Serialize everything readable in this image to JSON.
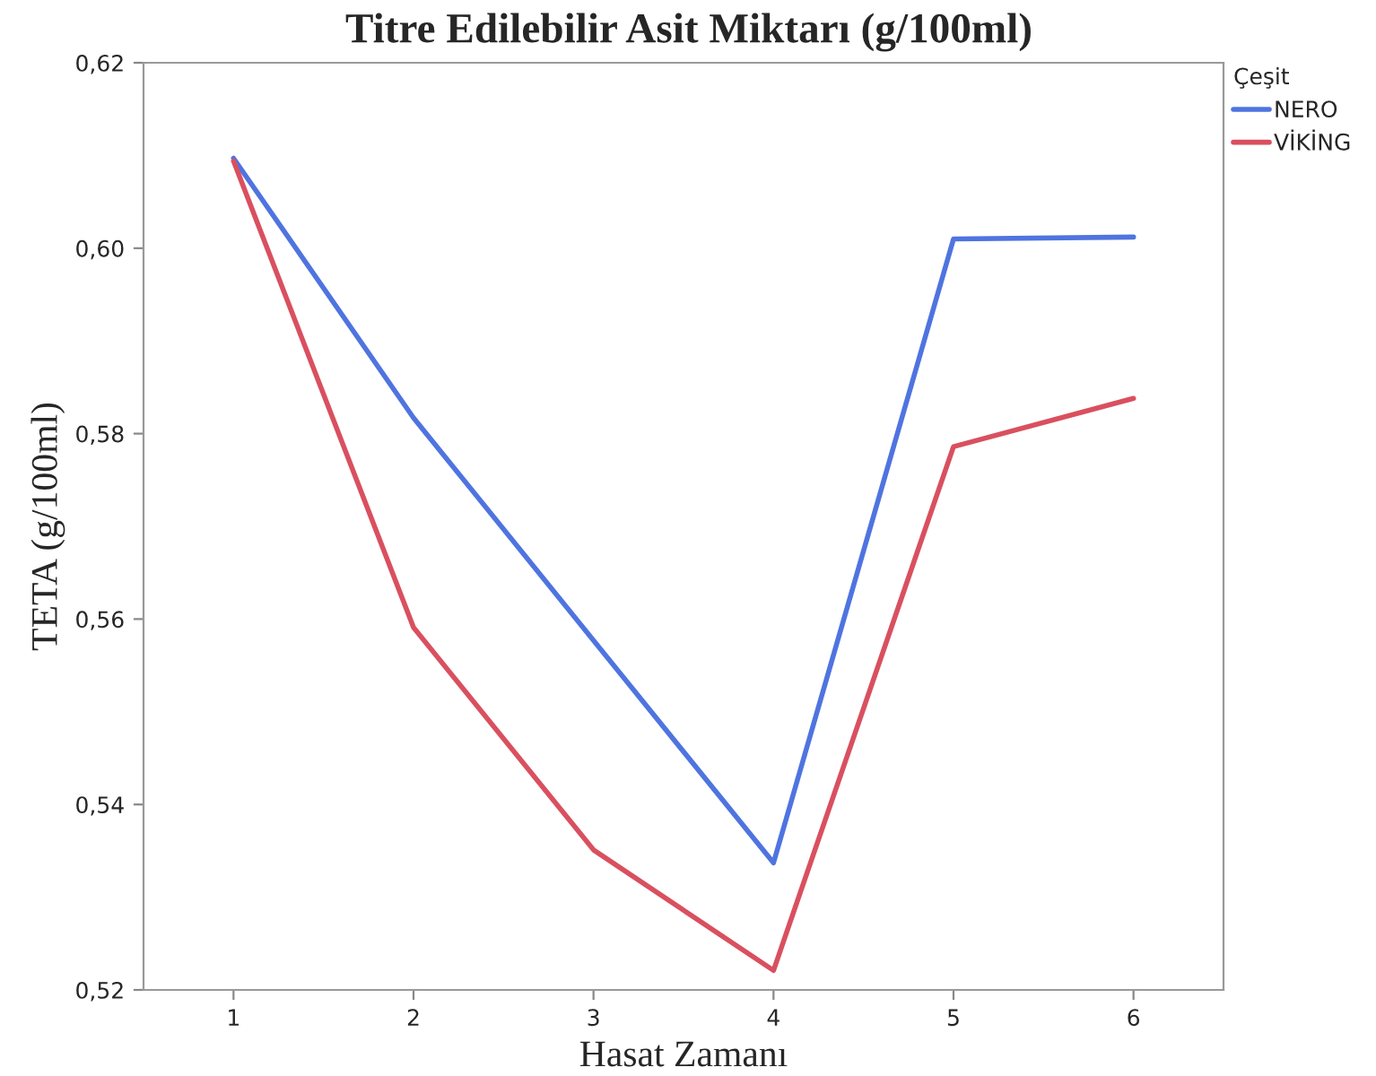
{
  "chart_data": {
    "type": "line",
    "title": "Titre Edilebilir Asit Miktarı (g/100ml)",
    "xlabel": "Hasat Zamanı",
    "ylabel": "TETA (g/100ml)",
    "legend_title": "Çeşit",
    "x": [
      1,
      2,
      3,
      4,
      5,
      6
    ],
    "series": [
      {
        "name": "NERO",
        "color": "#4f74e0",
        "values": [
          0.6097,
          0.5817,
          0.5577,
          0.5337,
          0.601,
          0.6012
        ]
      },
      {
        "name": "VİKİNG",
        "color": "#d9505f",
        "values": [
          0.6094,
          0.5591,
          0.5351,
          0.5221,
          0.5786,
          0.5838
        ]
      }
    ],
    "xlim": [
      0.5,
      6.5
    ],
    "xticks": [
      1,
      2,
      3,
      4,
      5,
      6
    ],
    "ylim": [
      0.52,
      0.62
    ],
    "yticks": [
      {
        "value": 0.52,
        "label": "0,52"
      },
      {
        "value": 0.54,
        "label": "0,54"
      },
      {
        "value": 0.56,
        "label": "0,56"
      },
      {
        "value": 0.58,
        "label": "0,58"
      },
      {
        "value": 0.6,
        "label": "0,60"
      },
      {
        "value": 0.62,
        "label": "0,62"
      }
    ],
    "grid": false,
    "legend": "top right",
    "marker": "none",
    "line_style": "solid"
  }
}
